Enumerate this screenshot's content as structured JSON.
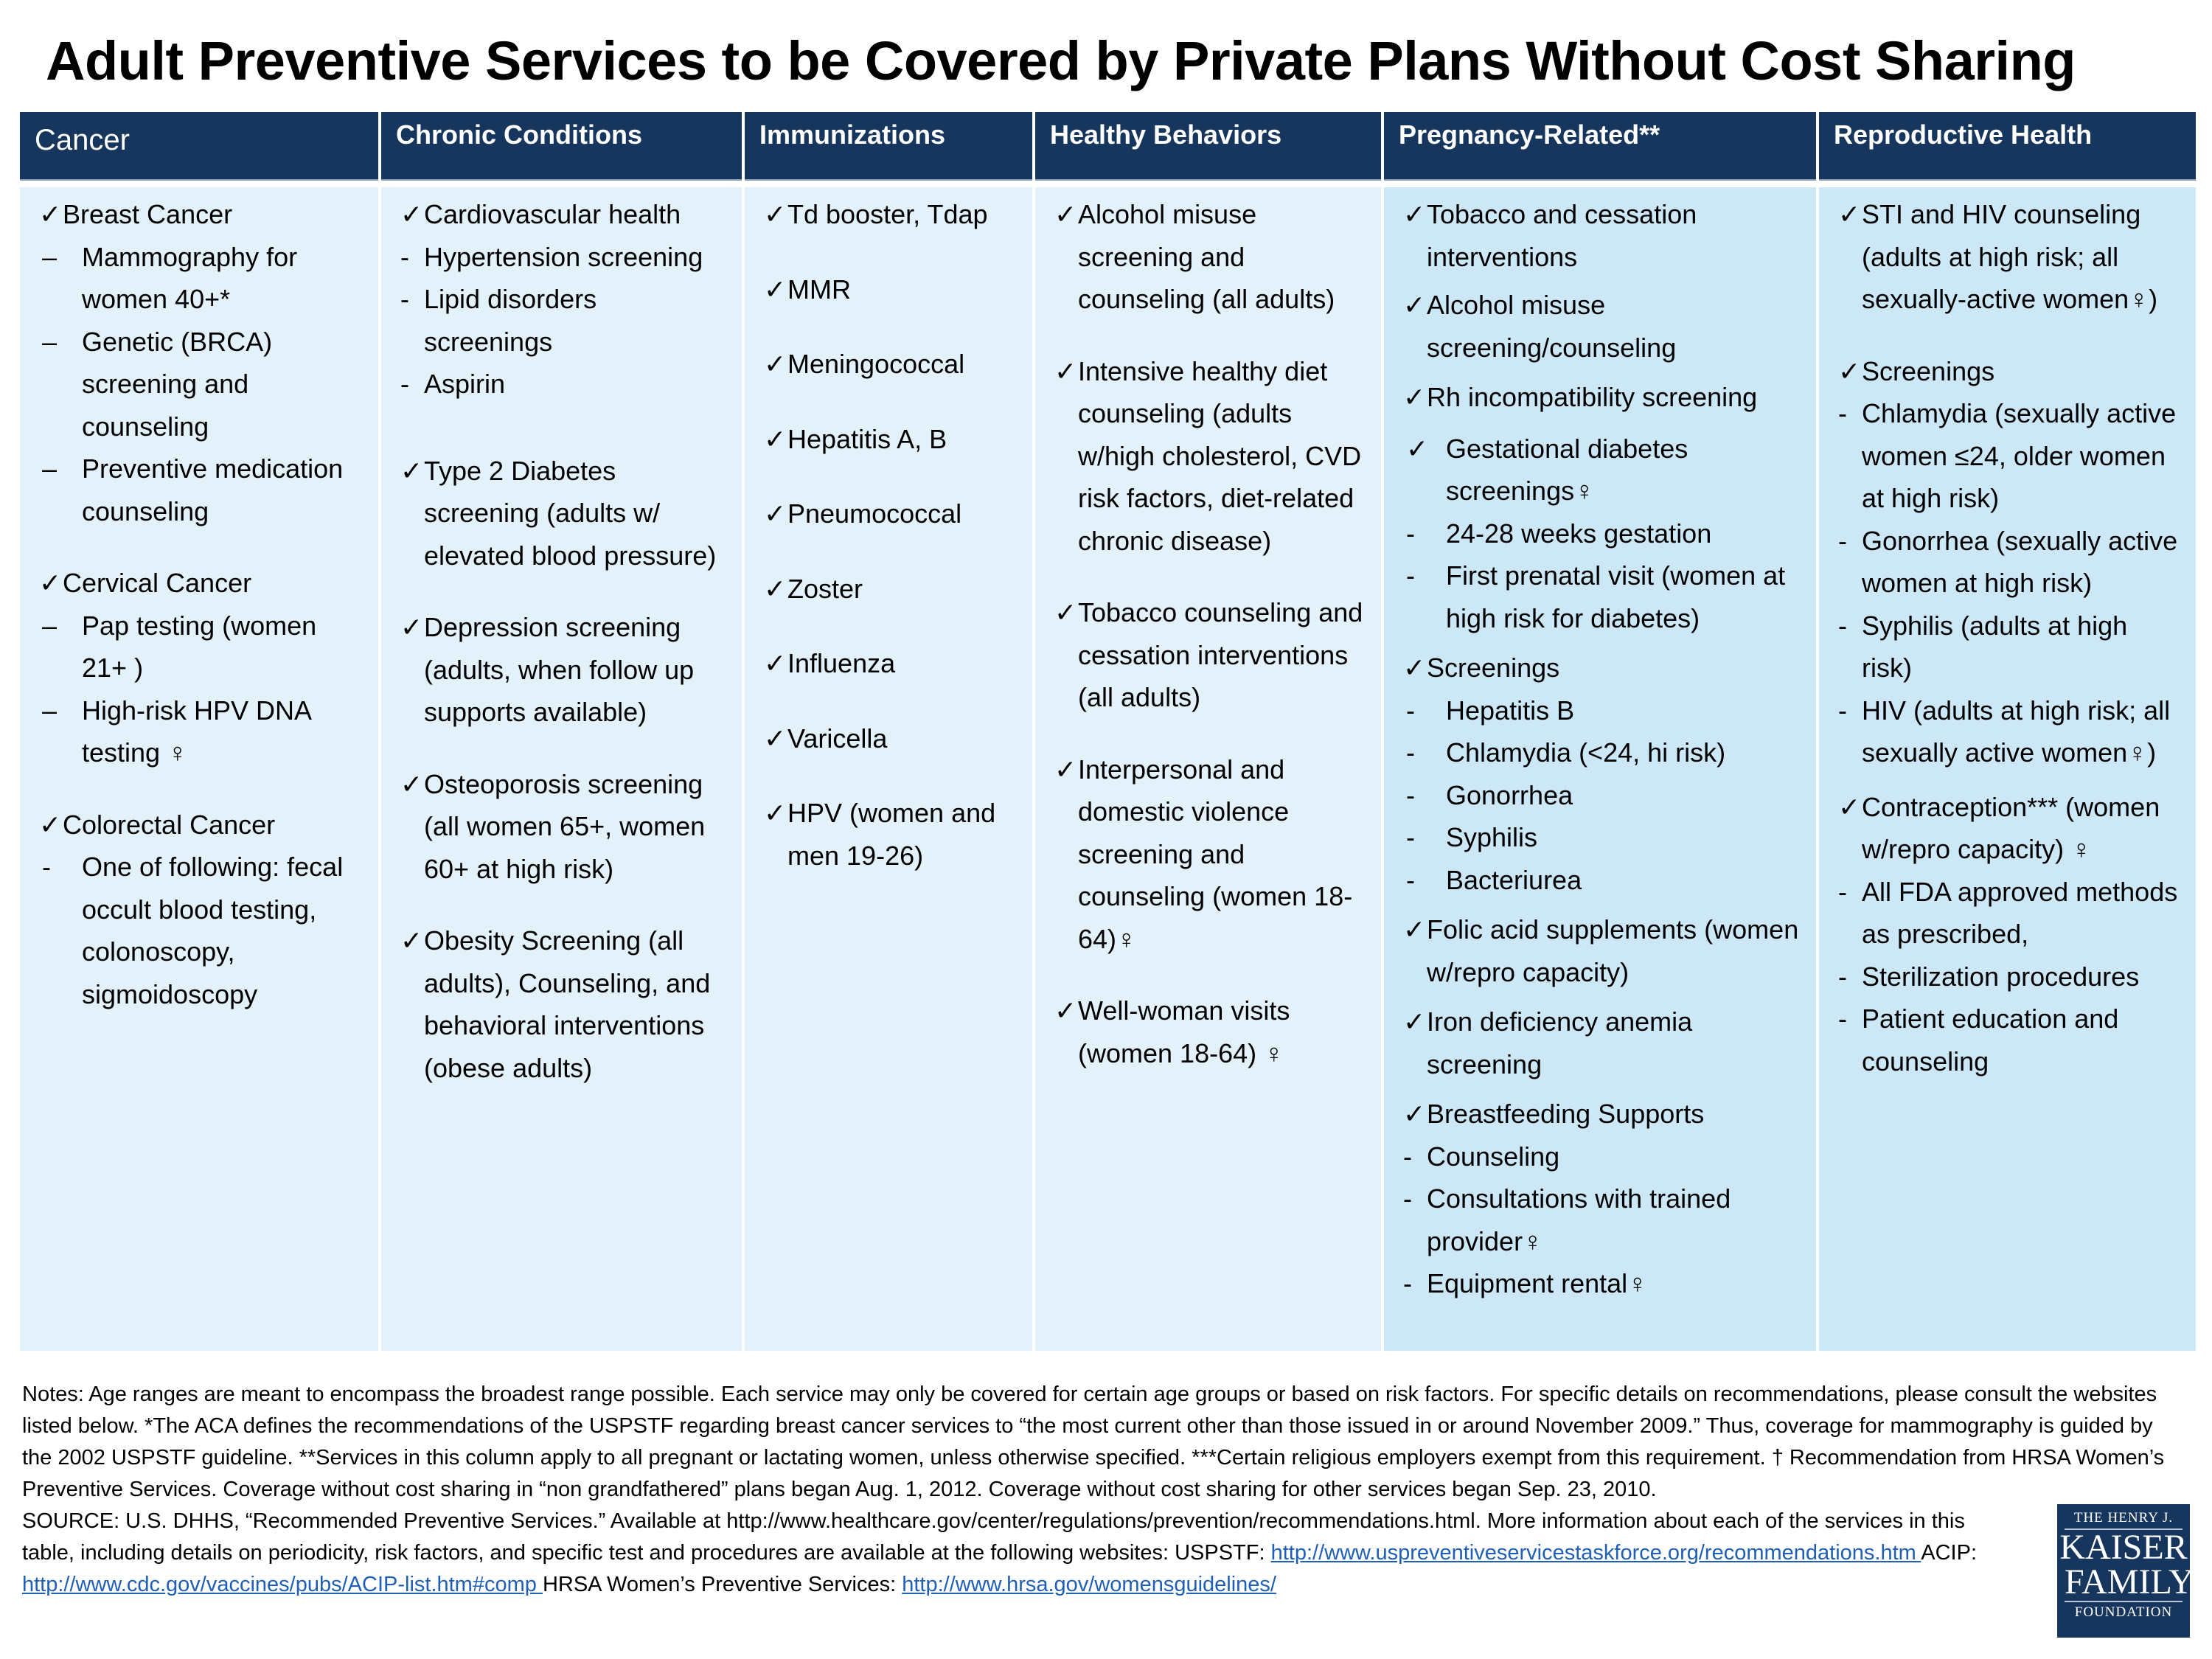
{
  "title": "Adult Preventive Services to be Covered by Private Plans Without Cost Sharing",
  "colors": {
    "header_bg": "#17365d",
    "cell_bg_light": "#e3f2fa",
    "cell_bg_blue": "#cce8f7",
    "link": "#1f5fb8"
  },
  "columns": [
    {
      "header": "Cancer",
      "groups": [
        [
          {
            "m": "✓",
            "t": "Breast Cancer"
          },
          {
            "m": "–",
            "t": "Mammography for women 40+*",
            "sub": true
          },
          {
            "m": "–",
            "t": "Genetic (BRCA) screening and counseling",
            "sub": true
          },
          {
            "m": "–",
            "t": "Preventive medication counseling",
            "sub": true
          }
        ],
        [
          {
            "m": "✓",
            "t": "Cervical Cancer"
          },
          {
            "m": "–",
            "t": "Pap testing (women 21+ )",
            "sub": true
          },
          {
            "m": "–",
            "t": "High-risk HPV DNA testing ♀",
            "sub": true
          }
        ],
        [
          {
            "m": "✓",
            "t": "Colorectal Cancer"
          },
          {
            "m": "-",
            "t": "One of following: fecal occult blood testing, colonoscopy, sigmoidoscopy",
            "sub": true
          }
        ]
      ]
    },
    {
      "header": "Chronic Conditions",
      "groups": [
        [
          {
            "m": "✓",
            "t": "Cardiovascular health"
          },
          {
            "m": "-",
            "t": "Hypertension screening"
          },
          {
            "m": "-",
            "t": "Lipid disorders screenings"
          },
          {
            "m": "-",
            "t": "Aspirin"
          }
        ],
        [
          {
            "m": "✓",
            "t": "Type 2 Diabetes screening (adults w/ elevated blood pressure)"
          }
        ],
        [
          {
            "m": "✓",
            "t": "Depression screening (adults, when follow up supports available)"
          }
        ],
        [
          {
            "m": "✓",
            "t": "Osteoporosis screening (all women 65+, women 60+ at high risk)"
          }
        ],
        [
          {
            "m": "✓",
            "t": "Obesity Screening  (all adults), Counseling, and behavioral interventions (obese adults)"
          }
        ]
      ]
    },
    {
      "header": "Immunizations",
      "groups": [
        [
          {
            "m": "✓",
            "t": "Td booster, Tdap"
          }
        ],
        [
          {
            "m": "✓",
            "t": "MMR"
          }
        ],
        [
          {
            "m": "✓",
            "t": "Meningococcal"
          }
        ],
        [
          {
            "m": "✓",
            "t": " Hepatitis A, B"
          }
        ],
        [
          {
            "m": "✓",
            "t": "Pneumococcal"
          }
        ],
        [
          {
            "m": "✓",
            "t": "Zoster"
          }
        ],
        [
          {
            "m": "✓",
            "t": "Influenza"
          }
        ],
        [
          {
            "m": "✓",
            "t": "Varicella"
          }
        ],
        [
          {
            "m": "✓",
            "t": "HPV (women and men 19-26)"
          }
        ]
      ]
    },
    {
      "header": "Healthy Behaviors",
      "groups": [
        [
          {
            "m": "✓",
            "t": "Alcohol misuse screening and counseling (all adults)"
          }
        ],
        [
          {
            "m": "✓",
            "t": "Intensive healthy diet counseling (adults w/high cholesterol, CVD risk factors, diet-related chronic disease)"
          }
        ],
        [
          {
            "m": "✓",
            "t": "Tobacco counseling and cessation interventions  (all adults)"
          }
        ],
        [
          {
            "m": "✓",
            "t": "Interpersonal and domestic violence screening and counseling (women 18-64)♀"
          }
        ],
        [
          {
            "m": "✓",
            "t": "Well-woman visits (women 18-64) ♀"
          }
        ]
      ]
    },
    {
      "header": "Pregnancy-Related**",
      "groups": [
        [
          {
            "m": "✓",
            "t": "Tobacco and cessation interventions"
          }
        ],
        [
          {
            "m": "✓",
            "t": "Alcohol misuse screening/counseling"
          }
        ],
        [
          {
            "m": "✓",
            "t": "Rh incompatibility screening"
          }
        ],
        [
          {
            "m": "✓",
            "t": "Gestational diabetes screenings♀",
            "sub": true
          },
          {
            "m": "-",
            "t": "24-28 weeks gestation",
            "sub": true
          },
          {
            "m": "-",
            "t": "First prenatal visit (women at high risk for diabetes)",
            "sub": true
          }
        ],
        [
          {
            "m": "✓",
            "t": "Screenings"
          },
          {
            "m": "-",
            "t": "Hepatitis B",
            "sub": true
          },
          {
            "m": "-",
            "t": "Chlamydia (<24, hi risk)",
            "sub": true
          },
          {
            "m": "-",
            "t": "Gonorrhea",
            "sub": true
          },
          {
            "m": "-",
            "t": "Syphilis",
            "sub": true
          },
          {
            "m": "-",
            "t": "Bacteriurea",
            "sub": true
          }
        ],
        [
          {
            "m": "✓",
            "t": "Folic acid supplements (women w/repro capacity)"
          }
        ],
        [
          {
            "m": "✓",
            "t": "Iron deficiency anemia screening"
          }
        ],
        [
          {
            "m": "✓",
            "t": "Breastfeeding Supports"
          },
          {
            "m": "-",
            "t": "Counseling"
          },
          {
            "m": "-",
            "t": "Consultations with trained provider♀"
          },
          {
            "m": "-",
            "t": "Equipment rental♀"
          }
        ]
      ]
    },
    {
      "header": "Reproductive Health",
      "groups": [
        [
          {
            "m": "✓",
            "t": "STI and HIV counseling (adults at high risk;  all sexually-active women♀)"
          }
        ],
        [
          {
            "m": "✓",
            "t": "Screenings"
          },
          {
            "m": "-",
            "t": "Chlamydia (sexually active women ≤24, older women at high risk)"
          },
          {
            "m": "-",
            "t": "Gonorrhea (sexually active women at high risk)"
          },
          {
            "m": "-",
            "t": "Syphilis (adults at high risk)"
          },
          {
            "m": "-",
            "t": "HIV (adults at high risk; all sexually active women♀)"
          }
        ],
        [
          {
            "m": "✓",
            "t": "Contraception*** (women w/repro capacity) ♀"
          },
          {
            "m": "-",
            "t": "All FDA approved methods as prescribed,"
          },
          {
            "m": "-",
            "t": "Sterilization procedures"
          },
          {
            "m": "-",
            "t": "Patient education and counseling"
          }
        ]
      ]
    }
  ],
  "notes": "Notes: Age ranges are meant to encompass the broadest range possible. Each service may only be covered for certain age groups or based on risk factors. For specific details on recommendations, please consult the websites listed below.  *The ACA defines the recommendations of the USPSTF regarding breast cancer services to “the most current other than those issued in or around November 2009.” Thus, coverage for mammography is guided by the 2002 USPSTF guideline.  **Services in this column apply to all pregnant or lactating women, unless otherwise specified. ***Certain religious employers exempt from this requirement. † Recommendation from HRSA Women’s Preventive Services. Coverage without cost sharing in “non grandfathered” plans began  Aug. 1, 2012. Coverage without cost sharing for other services began Sep. 23, 2010.",
  "source": {
    "text1": "SOURCE: U.S. DHHS, “Recommended Preventive Services.” Available at http://www.healthcare.gov/center/regulations/prevention/recommendations.html.  More information about each of the services in this table, including details on periodicity, risk factors, and specific test and procedures are available at the following websites: USPSTF: ",
    "link1": "http://www.uspreventiveservicestaskforce.org/recommendations.htm ",
    "text2": "ACIP:  ",
    "link2": "http://www.cdc.gov/vaccines/pubs/ACIP-list.htm#comp ",
    "text3": "HRSA Women’s Preventive Services: ",
    "link3": "http://www.hrsa.gov/womensguidelines/"
  },
  "logo": {
    "line1": "THE HENRY J.",
    "line2": "KAISER",
    "line3": "FAMILY",
    "line4": "FOUNDATION"
  }
}
